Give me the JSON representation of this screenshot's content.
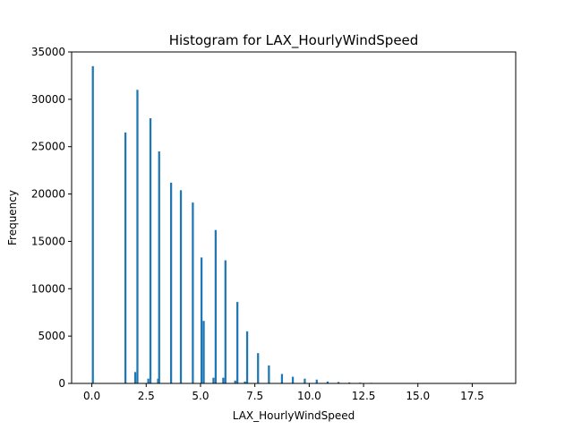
{
  "chart_data": {
    "type": "bar",
    "title": "Histogram for LAX_HourlyWindSpeed",
    "xlabel": "LAX_HourlyWindSpeed",
    "ylabel": "Frequency",
    "xlim": [
      -0.93,
      19.5
    ],
    "ylim": [
      0,
      35000
    ],
    "xticks": [
      0,
      2.5,
      5,
      7.5,
      10,
      12.5,
      15,
      17.5
    ],
    "xtick_labels": [
      "0.0",
      "2.5",
      "5.0",
      "7.5",
      "10.0",
      "12.5",
      "15.0",
      "17.5"
    ],
    "yticks": [
      0,
      5000,
      10000,
      15000,
      20000,
      25000,
      30000,
      35000
    ],
    "ytick_labels": [
      "0",
      "5000",
      "10000",
      "15000",
      "20000",
      "25000",
      "30000",
      "35000"
    ],
    "bin_width": 0.093,
    "bar_color": "#1f77b4",
    "grid": false,
    "legend": "none",
    "bins": [
      {
        "x": 0.0,
        "count": 33500
      },
      {
        "x": 1.5,
        "count": 26500
      },
      {
        "x": 1.95,
        "count": 1200
      },
      {
        "x": 2.05,
        "count": 31000
      },
      {
        "x": 2.55,
        "count": 500
      },
      {
        "x": 2.65,
        "count": 28000
      },
      {
        "x": 3.0,
        "count": 500
      },
      {
        "x": 3.05,
        "count": 24500
      },
      {
        "x": 3.6,
        "count": 21200
      },
      {
        "x": 4.05,
        "count": 20400
      },
      {
        "x": 4.6,
        "count": 19100
      },
      {
        "x": 5.0,
        "count": 13300
      },
      {
        "x": 5.1,
        "count": 6600
      },
      {
        "x": 5.55,
        "count": 600
      },
      {
        "x": 5.65,
        "count": 16200
      },
      {
        "x": 6.0,
        "count": 600
      },
      {
        "x": 6.1,
        "count": 13000
      },
      {
        "x": 6.55,
        "count": 300
      },
      {
        "x": 6.65,
        "count": 8600
      },
      {
        "x": 7.0,
        "count": 200
      },
      {
        "x": 7.1,
        "count": 5500
      },
      {
        "x": 7.6,
        "count": 3200
      },
      {
        "x": 8.1,
        "count": 1900
      },
      {
        "x": 8.7,
        "count": 1000
      },
      {
        "x": 9.2,
        "count": 700
      },
      {
        "x": 9.75,
        "count": 500
      },
      {
        "x": 10.3,
        "count": 400
      },
      {
        "x": 10.8,
        "count": 200
      },
      {
        "x": 11.3,
        "count": 150
      },
      {
        "x": 11.8,
        "count": 100
      },
      {
        "x": 12.3,
        "count": 80
      },
      {
        "x": 12.8,
        "count": 60
      },
      {
        "x": 13.4,
        "count": 40
      },
      {
        "x": 13.9,
        "count": 20
      },
      {
        "x": 14.4,
        "count": 10
      },
      {
        "x": 15.5,
        "count": 5
      },
      {
        "x": 18.5,
        "count": 3
      }
    ]
  }
}
